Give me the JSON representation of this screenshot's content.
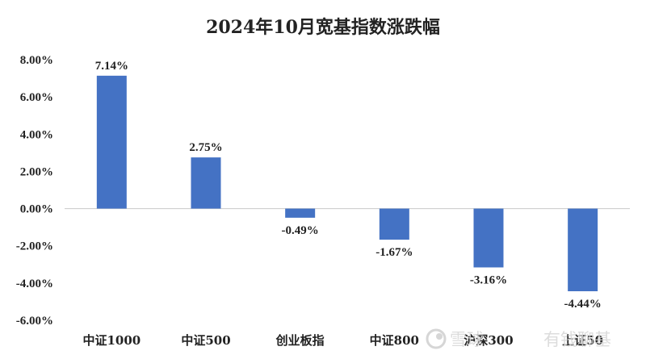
{
  "chart_data": {
    "type": "bar",
    "title": "2024年10月宽基指数涨跌幅",
    "categories": [
      "中证1000",
      "中证500",
      "创业板指",
      "中证800",
      "沪深300",
      "上证50"
    ],
    "values": [
      7.14,
      2.75,
      -0.49,
      -1.67,
      -3.16,
      -4.44
    ],
    "data_labels": [
      "7.14%",
      "2.75%",
      "-0.49%",
      "-1.67%",
      "-3.16%",
      "-4.44%"
    ],
    "ylim": [
      -6,
      8
    ],
    "yticks": [
      8,
      6,
      4,
      2,
      0,
      -2,
      -4,
      -6
    ],
    "ytick_labels": [
      "8.00%",
      "6.00%",
      "4.00%",
      "2.00%",
      "0.00%",
      "-2.00%",
      "-4.00%",
      "-6.00%"
    ],
    "bar_color": "#4472c4",
    "grid": false,
    "legend": "none"
  },
  "watermark": {
    "brand": "雪球",
    "account": "有钱聊基",
    "logo_icon": "snowball-logo-icon"
  }
}
